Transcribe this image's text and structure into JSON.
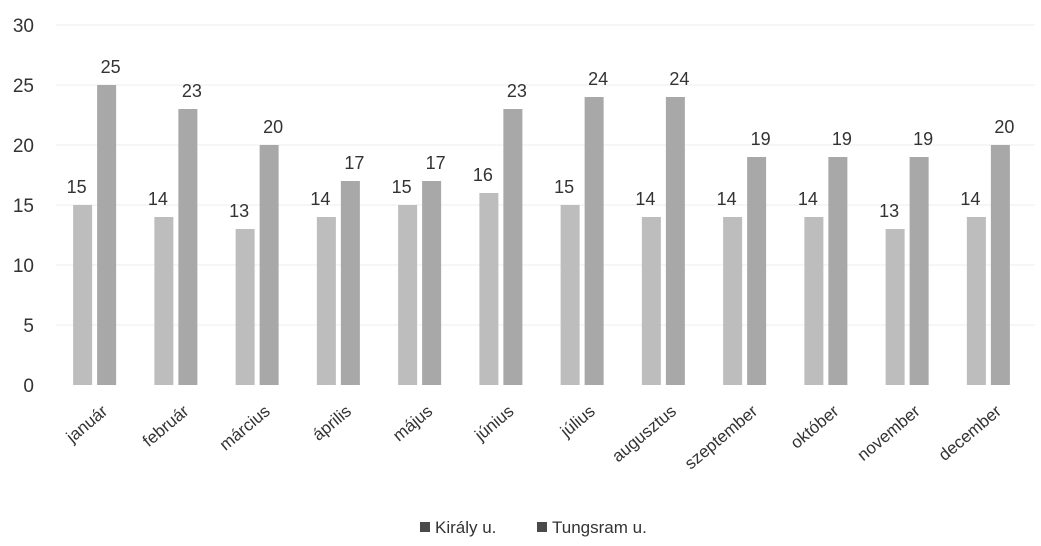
{
  "chart_data": {
    "type": "bar",
    "title": "",
    "xlabel": "",
    "ylabel": "",
    "ylim": [
      0,
      30
    ],
    "yticks": [
      0,
      5,
      10,
      15,
      20,
      25,
      30
    ],
    "grid": true,
    "legend_position": "bottom",
    "categories": [
      "január",
      "február",
      "március",
      "április",
      "május",
      "június",
      "július",
      "augusztus",
      "szeptember",
      "október",
      "november",
      "december"
    ],
    "series": [
      {
        "name": "Király u.",
        "color": "#bdbdbd",
        "values": [
          15,
          14,
          13,
          14,
          15,
          16,
          15,
          14,
          14,
          14,
          13,
          14
        ]
      },
      {
        "name": "Tungsram u.",
        "color": "#a8a8a8",
        "values": [
          25,
          23,
          20,
          17,
          17,
          23,
          24,
          24,
          19,
          19,
          19,
          20
        ]
      }
    ]
  }
}
